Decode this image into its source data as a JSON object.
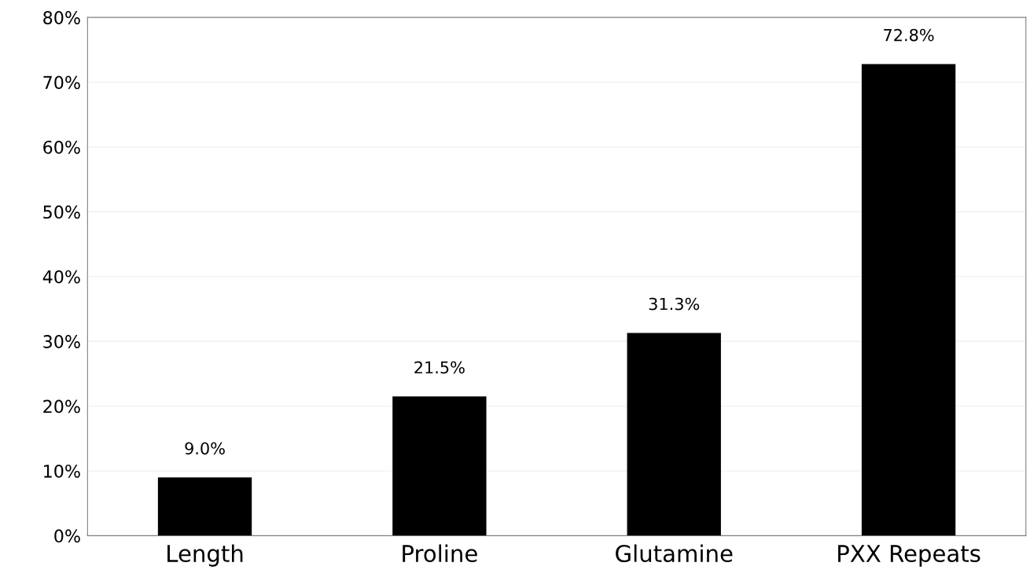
{
  "chart_data": {
    "type": "bar",
    "categories": [
      "Length",
      "Proline",
      "Glutamine",
      "PXX Repeats"
    ],
    "values": [
      9.0,
      21.5,
      31.3,
      72.8
    ],
    "value_labels": [
      "9.0%",
      "21.5%",
      "31.3%",
      "72.8%"
    ],
    "color": "#000000",
    "ylim": [
      0,
      80
    ],
    "yticks": [
      {
        "value": 0,
        "label": "0%"
      },
      {
        "value": 10,
        "label": "10%"
      },
      {
        "value": 20,
        "label": "20%"
      },
      {
        "value": 30,
        "label": "30%"
      },
      {
        "value": 40,
        "label": "40%"
      },
      {
        "value": 50,
        "label": "50%"
      },
      {
        "value": 60,
        "label": "60%"
      },
      {
        "value": 70,
        "label": "70%"
      },
      {
        "value": 80,
        "label": "80%"
      }
    ],
    "grid": "y",
    "legend": false
  }
}
